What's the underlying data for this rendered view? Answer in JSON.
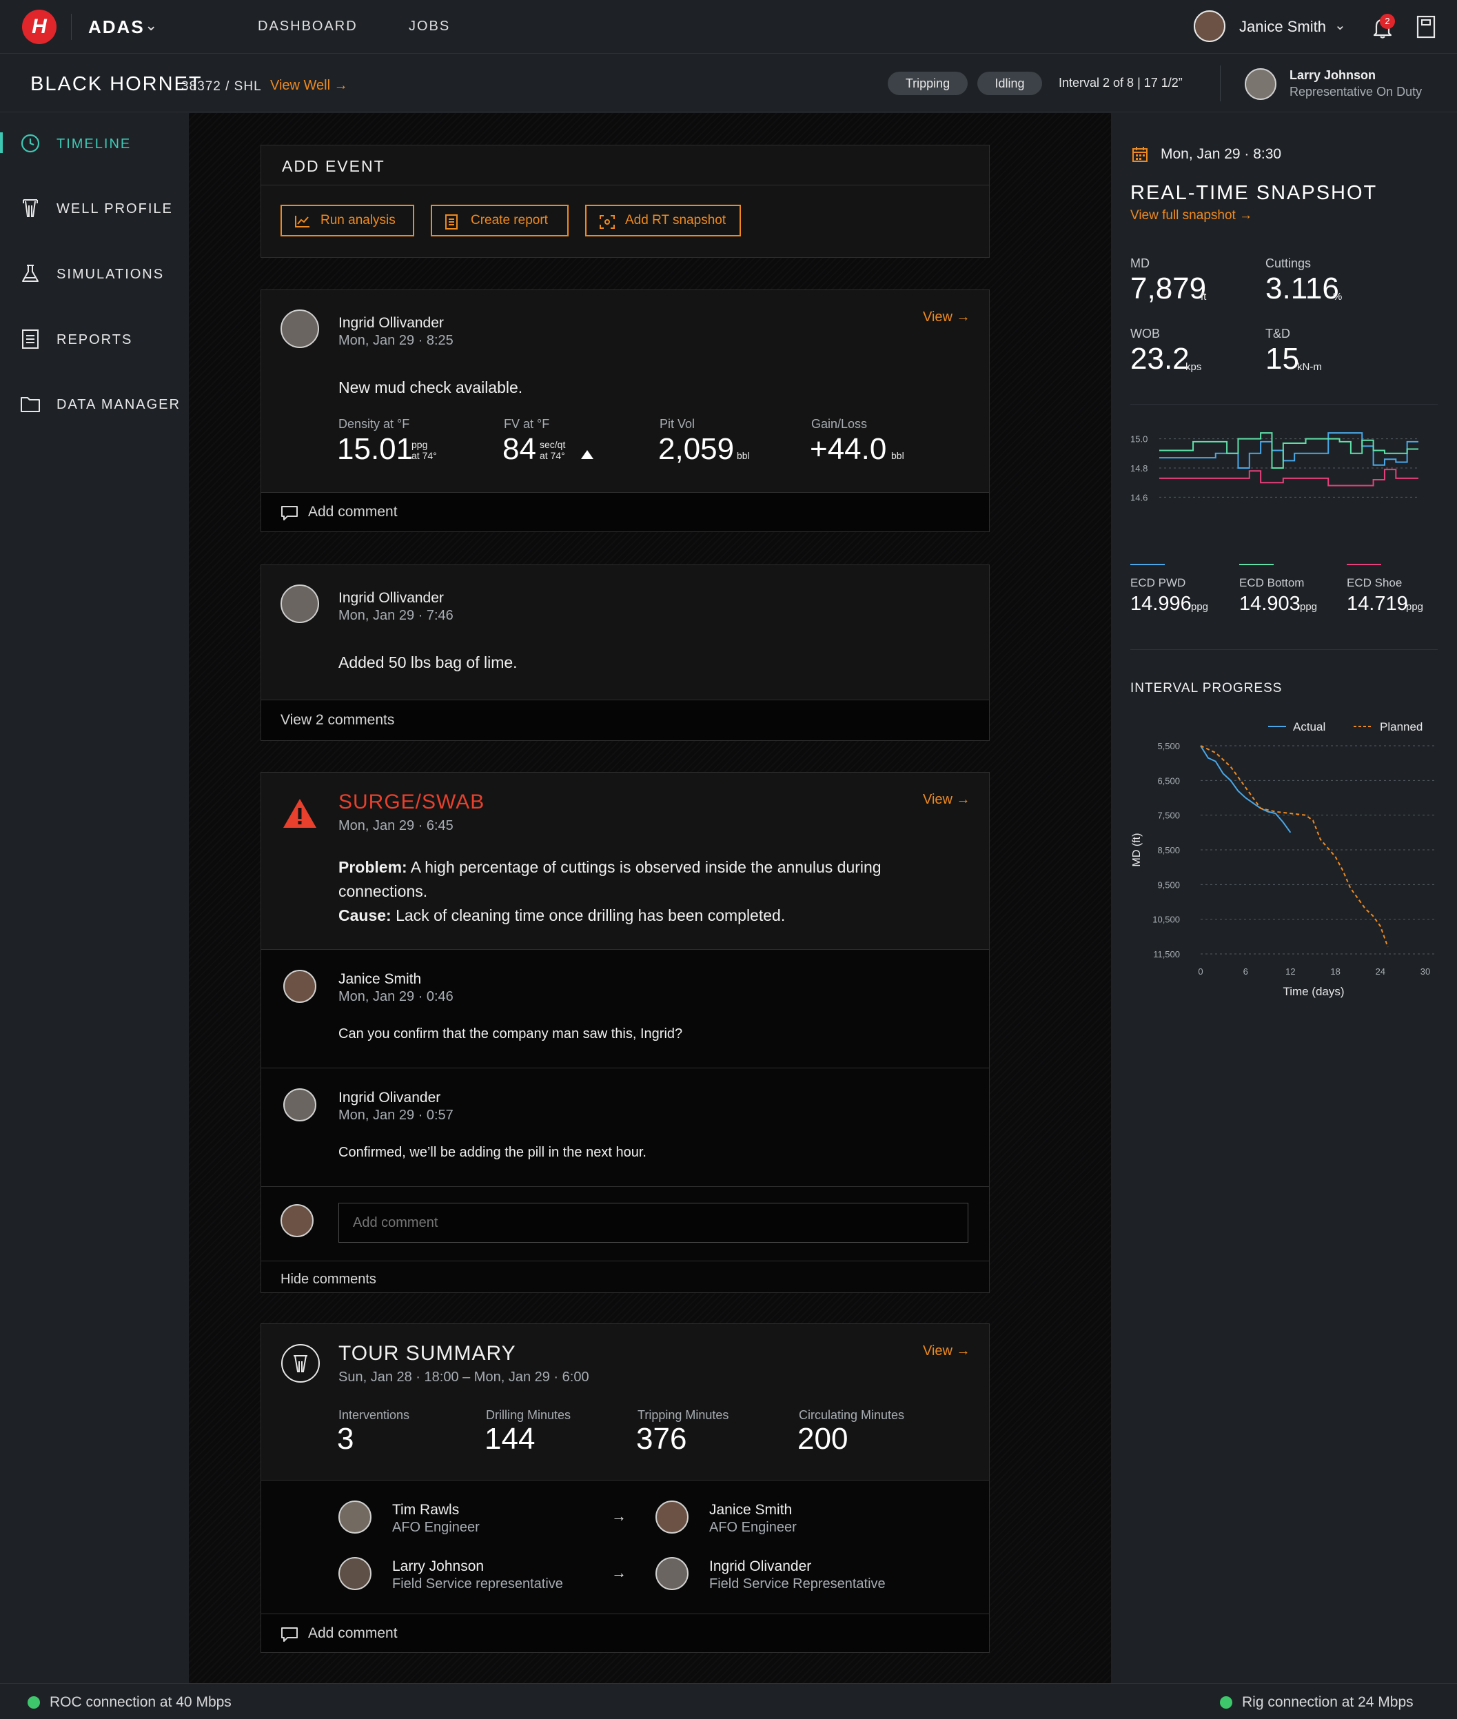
{
  "app": {
    "logo_letter": "H",
    "name": "ADAS",
    "nav": [
      "DASHBOARD",
      "JOBS"
    ],
    "user_name": "Janice Smith",
    "notification_count": "2"
  },
  "well": {
    "name": "BLACK HORNET",
    "code": "38372 / SHL",
    "view_link": "View Well",
    "status_pills": [
      "Tripping",
      "Idling"
    ],
    "interval": "Interval 2 of 8  |  17 1/2”",
    "rep_name": "Larry Johnson",
    "rep_role": "Representative On Duty"
  },
  "sidebar": {
    "items": [
      {
        "label": "TIMELINE",
        "icon": "clock-icon",
        "active": true
      },
      {
        "label": "WELL PROFILE",
        "icon": "well-icon",
        "active": false
      },
      {
        "label": "SIMULATIONS",
        "icon": "flask-icon",
        "active": false
      },
      {
        "label": "REPORTS",
        "icon": "report-icon",
        "active": false
      },
      {
        "label": "DATA MANAGER",
        "icon": "folder-icon",
        "active": false
      }
    ]
  },
  "add_event": {
    "title": "ADD EVENT",
    "buttons": [
      "Run analysis",
      "Create report",
      "Add RT snapshot"
    ]
  },
  "mud_check": {
    "author": "Ingrid Ollivander",
    "date": "Mon, Jan 29 · 8:25",
    "view": "View",
    "message": "New mud check available.",
    "metrics": [
      {
        "label": "Density at °F",
        "value": "15.01",
        "unit_top": "ppg",
        "unit_bottom": "at 74°"
      },
      {
        "label": "FV at °F",
        "value": "84",
        "unit_top": "sec/qt",
        "unit_bottom": "at 74°"
      },
      {
        "label": "Pit Vol",
        "value": "2,059",
        "unit_top": "",
        "unit_bottom": "bbl"
      },
      {
        "label": "Gain/Loss",
        "value": "+44.0",
        "unit_top": "",
        "unit_bottom": "bbl"
      }
    ],
    "footer": "Add comment"
  },
  "lime": {
    "author": "Ingrid Ollivander",
    "date": "Mon, Jan 29 · 7:46",
    "message": "Added 50 lbs bag of lime.",
    "footer": "View 2 comments"
  },
  "surge": {
    "title": "SURGE/SWAB",
    "date": "Mon, Jan 29 · 6:45",
    "view": "View",
    "problem_label": "Problem:",
    "problem_text": " A high percentage of cuttings is observed inside the annulus during connections.",
    "cause_label": "Cause:",
    "cause_text": " Lack of cleaning time once drilling has been completed.",
    "comments": [
      {
        "author": "Janice Smith",
        "date": "Mon, Jan 29 · 0:46",
        "text": "Can you confirm that the company man saw this, Ingrid?"
      },
      {
        "author": "Ingrid Olivander",
        "date": "Mon, Jan 29 · 0:57",
        "text": "Confirmed, we’ll be adding the pill in the next hour."
      }
    ],
    "comment_placeholder": "Add comment",
    "footer": "Hide comments"
  },
  "tour": {
    "title": "TOUR SUMMARY",
    "dates": "Sun, Jan 28 · 18:00 – Mon, Jan 29 · 6:00",
    "view": "View",
    "metrics": [
      {
        "label": "Interventions",
        "value": "3"
      },
      {
        "label": "Drilling Minutes",
        "value": "144"
      },
      {
        "label": "Tripping Minutes",
        "value": "376"
      },
      {
        "label": "Circulating Minutes",
        "value": "200"
      }
    ],
    "handovers": [
      {
        "from_name": "Tim Rawls",
        "from_role": "AFO Engineer",
        "to_name": "Janice Smith",
        "to_role": "AFO Engineer"
      },
      {
        "from_name": "Larry Johnson",
        "from_role": "Field Service representative",
        "to_name": "Ingrid Olivander",
        "to_role": "Field Service Representative"
      }
    ],
    "footer": "Add comment"
  },
  "snapshot": {
    "date": "Mon, Jan 29 · 8:30",
    "title": "REAL-TIME SNAPSHOT",
    "link": "View full snapshot",
    "metrics": [
      {
        "label": "MD",
        "value": "7,879",
        "unit": "ft"
      },
      {
        "label": "Cuttings",
        "value": "3.116",
        "unit": "%"
      },
      {
        "label": "WOB",
        "value": "23.2",
        "unit": "kps"
      },
      {
        "label": "T&D",
        "value": "15",
        "unit": "kN-m"
      }
    ],
    "ecd": [
      {
        "label": "ECD PWD",
        "value": "14.996",
        "unit": "ppg",
        "color": "#4aa8e8"
      },
      {
        "label": "ECD Bottom",
        "value": "14.903",
        "unit": "ppg",
        "color": "#5fe0a8"
      },
      {
        "label": "ECD Shoe",
        "value": "14.719",
        "unit": "ppg",
        "color": "#e8407a"
      }
    ]
  },
  "chart_data": [
    {
      "type": "line",
      "title": "",
      "xlabel": "",
      "ylabel": "",
      "yticks": [
        "15.0",
        "14.8",
        "14.6"
      ],
      "ylim": [
        14.55,
        15.05
      ],
      "series": [
        {
          "name": "ECD PWD",
          "color": "#4aa8e8",
          "values": [
            14.87,
            14.87,
            14.87,
            14.87,
            14.87,
            14.9,
            14.9,
            14.8,
            14.9,
            14.98,
            14.92,
            14.85,
            14.9,
            14.9,
            14.9,
            15.04,
            15.04,
            15.04,
            14.95,
            14.82,
            14.86,
            14.84,
            14.98
          ]
        },
        {
          "name": "ECD Bottom",
          "color": "#5fe0a8",
          "values": [
            14.92,
            14.92,
            14.92,
            14.98,
            14.98,
            14.98,
            14.9,
            15.0,
            15.0,
            15.04,
            14.8,
            14.97,
            14.97,
            15.0,
            15.0,
            15.0,
            14.98,
            14.9,
            14.99,
            14.92,
            14.9,
            14.9,
            14.93
          ]
        },
        {
          "name": "ECD Shoe",
          "color": "#e8407a",
          "values": [
            14.73,
            14.73,
            14.73,
            14.73,
            14.73,
            14.73,
            14.73,
            14.73,
            14.78,
            14.7,
            14.7,
            14.73,
            14.73,
            14.73,
            14.73,
            14.68,
            14.68,
            14.68,
            14.68,
            14.72,
            14.79,
            14.73,
            14.73
          ]
        }
      ]
    },
    {
      "type": "line",
      "title": "INTERVAL PROGRESS",
      "xlabel": "Time (days)",
      "ylabel": "MD (ft)",
      "x_ticks": [
        0,
        6,
        12,
        18,
        24,
        30
      ],
      "y_ticks": [
        "5,500",
        "6,500",
        "7,500",
        "8,500",
        "9,500",
        "10,500",
        "11,500"
      ],
      "xlim": [
        0,
        30
      ],
      "ylim": [
        5500,
        11500
      ],
      "legend": "top-right",
      "series": [
        {
          "name": "Actual",
          "color": "#4aa8e8",
          "dash": false,
          "x": [
            0,
            1,
            2,
            3,
            4,
            5,
            6,
            7,
            8,
            9,
            10,
            11,
            12
          ],
          "y": [
            5500,
            5850,
            5950,
            6300,
            6500,
            6800,
            7000,
            7150,
            7300,
            7400,
            7450,
            7700,
            8000
          ]
        },
        {
          "name": "Planned",
          "color": "#f08a1f",
          "dash": true,
          "x": [
            0,
            2,
            4,
            6,
            8,
            10,
            12,
            14,
            15,
            16,
            17,
            18,
            19,
            20,
            21,
            22,
            23,
            24,
            25
          ],
          "y": [
            5500,
            5700,
            6100,
            6700,
            7300,
            7400,
            7450,
            7500,
            7650,
            8200,
            8450,
            8700,
            9100,
            9600,
            9900,
            10200,
            10400,
            10700,
            11300
          ]
        }
      ]
    }
  ],
  "status": {
    "left": "ROC connection at 40 Mbps",
    "right": "Rig connection at 24 Mbps"
  }
}
